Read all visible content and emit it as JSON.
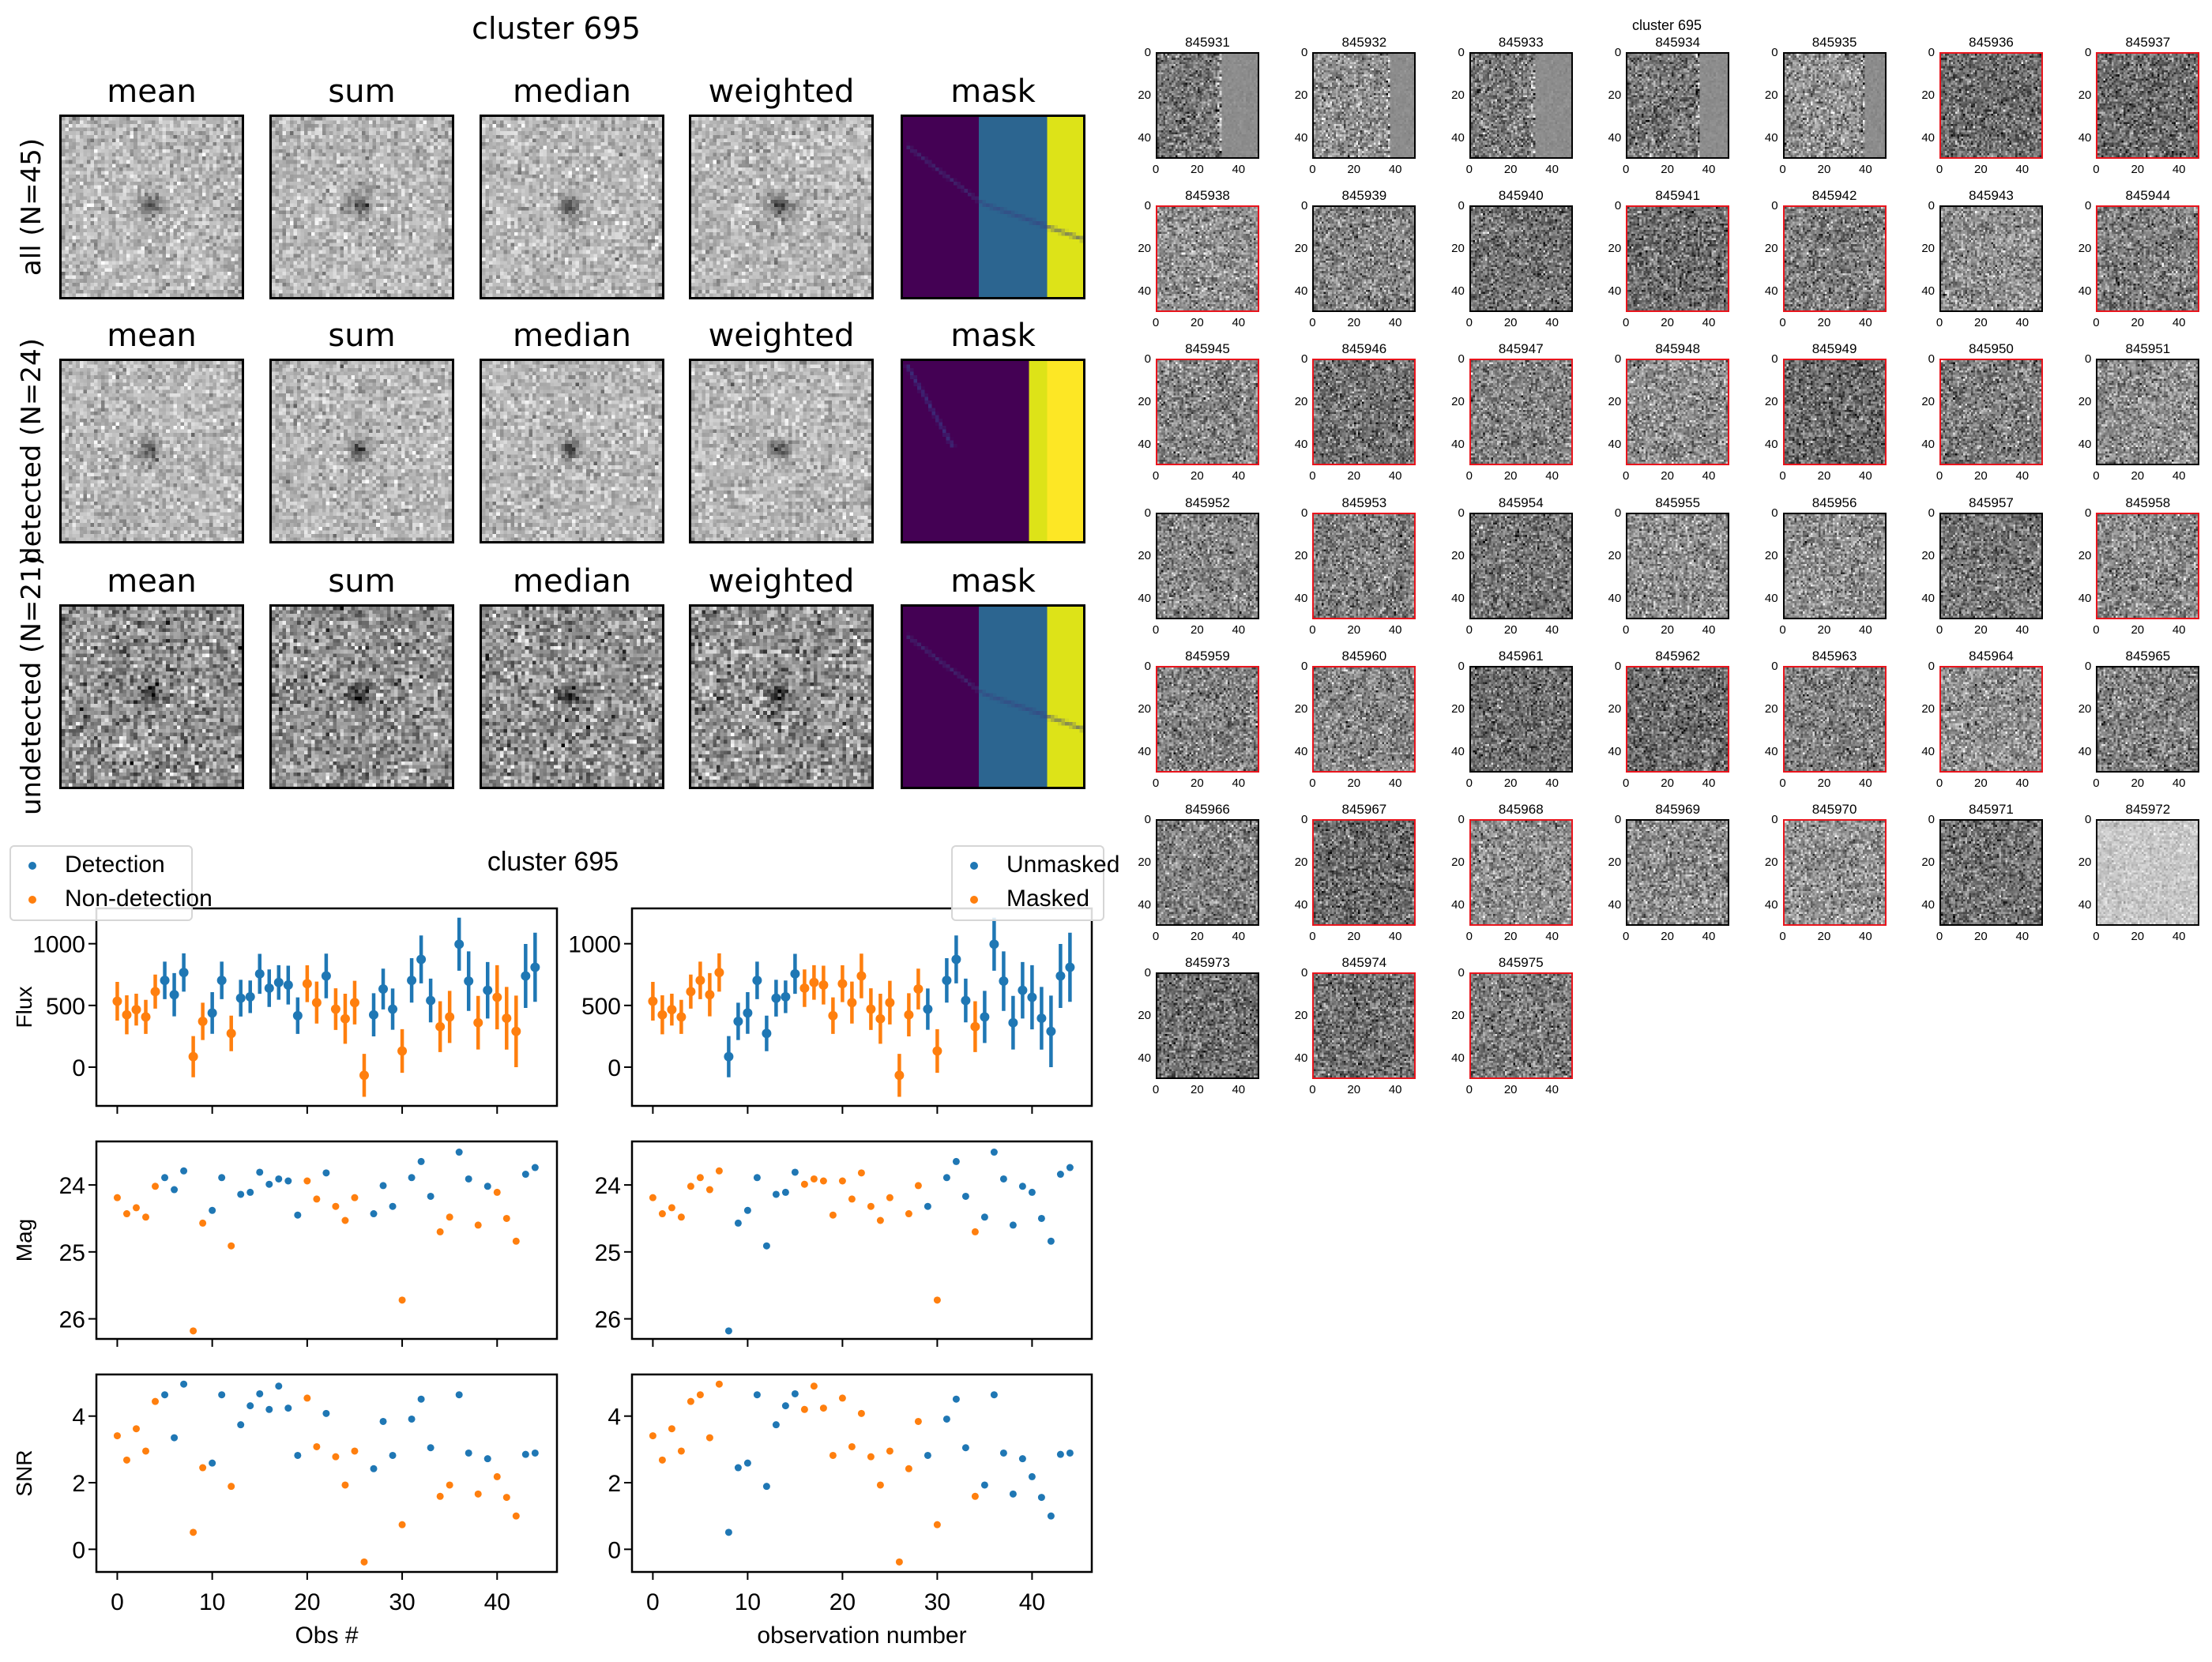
{
  "composite": {
    "title": "cluster 695",
    "column_titles": [
      "mean",
      "sum",
      "median",
      "weighted",
      "mask"
    ],
    "row_labels": [
      "all (N=45)",
      "detected (N=24)",
      "undetected (N=21)"
    ],
    "mask_colors": {
      "purple": "#440154",
      "blue": "#2c6590",
      "yellow": "#fde725",
      "yellow_dim": "#dde318"
    }
  },
  "thumbnails": {
    "title": "cluster 695",
    "tick_labels": [
      "0",
      "20",
      "40"
    ],
    "detected_border_color": "#e8141c",
    "items": [
      {
        "id": "845931",
        "detected": false
      },
      {
        "id": "845932",
        "detected": false
      },
      {
        "id": "845933",
        "detected": false
      },
      {
        "id": "845934",
        "detected": false
      },
      {
        "id": "845935",
        "detected": false
      },
      {
        "id": "845936",
        "detected": true
      },
      {
        "id": "845937",
        "detected": true
      },
      {
        "id": "845938",
        "detected": true
      },
      {
        "id": "845939",
        "detected": false
      },
      {
        "id": "845940",
        "detected": false
      },
      {
        "id": "845941",
        "detected": true
      },
      {
        "id": "845942",
        "detected": true
      },
      {
        "id": "845943",
        "detected": false
      },
      {
        "id": "845944",
        "detected": true
      },
      {
        "id": "845945",
        "detected": true
      },
      {
        "id": "845946",
        "detected": true
      },
      {
        "id": "845947",
        "detected": true
      },
      {
        "id": "845948",
        "detected": true
      },
      {
        "id": "845949",
        "detected": true
      },
      {
        "id": "845950",
        "detected": true
      },
      {
        "id": "845951",
        "detected": false
      },
      {
        "id": "845952",
        "detected": false
      },
      {
        "id": "845953",
        "detected": true
      },
      {
        "id": "845954",
        "detected": false
      },
      {
        "id": "845955",
        "detected": false
      },
      {
        "id": "845956",
        "detected": false
      },
      {
        "id": "845957",
        "detected": false
      },
      {
        "id": "845958",
        "detected": true
      },
      {
        "id": "845959",
        "detected": true
      },
      {
        "id": "845960",
        "detected": true
      },
      {
        "id": "845961",
        "detected": false
      },
      {
        "id": "845962",
        "detected": true
      },
      {
        "id": "845963",
        "detected": true
      },
      {
        "id": "845964",
        "detected": true
      },
      {
        "id": "845965",
        "detected": false
      },
      {
        "id": "845966",
        "detected": false
      },
      {
        "id": "845967",
        "detected": true
      },
      {
        "id": "845968",
        "detected": true
      },
      {
        "id": "845969",
        "detected": false
      },
      {
        "id": "845970",
        "detected": true
      },
      {
        "id": "845971",
        "detected": false
      },
      {
        "id": "845972",
        "detected": false
      },
      {
        "id": "845973",
        "detected": false
      },
      {
        "id": "845974",
        "detected": true
      },
      {
        "id": "845975",
        "detected": true
      }
    ]
  },
  "chart_data": {
    "type": "scatter",
    "title": "cluster 695",
    "colors": {
      "blue": "#1f77b4",
      "orange": "#ff7f0e"
    },
    "observations": {
      "x": [
        0,
        1,
        2,
        3,
        4,
        5,
        6,
        7,
        8,
        9,
        10,
        11,
        12,
        13,
        14,
        15,
        16,
        17,
        18,
        19,
        20,
        21,
        22,
        23,
        24,
        25,
        26,
        27,
        28,
        29,
        30,
        31,
        32,
        33,
        34,
        35,
        36,
        37,
        38,
        39,
        40,
        41,
        42,
        43,
        44
      ],
      "flux": [
        534,
        424,
        466,
        407,
        612,
        703,
        587,
        767,
        85,
        371,
        439,
        703,
        273,
        559,
        570,
        756,
        640,
        686,
        665,
        417,
        676,
        523,
        739,
        470,
        392,
        523,
        -66,
        424,
        633,
        470,
        131,
        703,
        873,
        540,
        328,
        407,
        996,
        697,
        360,
        623,
        566,
        396,
        290,
        739,
        809
      ],
      "flux_err": [
        157,
        158,
        129,
        138,
        138,
        152,
        175,
        155,
        167,
        151,
        169,
        152,
        144,
        149,
        132,
        162,
        152,
        140,
        157,
        148,
        149,
        170,
        181,
        169,
        203,
        177,
        174,
        175,
        165,
        167,
        177,
        180,
        194,
        177,
        206,
        211,
        215,
        241,
        217,
        229,
        260,
        254,
        290,
        259,
        280
      ],
      "mag": [
        24.19,
        24.43,
        24.34,
        24.48,
        24.02,
        23.89,
        24.07,
        23.79,
        26.18,
        24.57,
        24.38,
        23.89,
        24.91,
        24.14,
        24.11,
        23.81,
        23.99,
        23.91,
        23.94,
        24.45,
        23.94,
        24.21,
        23.82,
        24.32,
        24.53,
        24.19,
        null,
        24.43,
        24.01,
        24.32,
        25.72,
        23.89,
        23.65,
        24.17,
        24.7,
        24.48,
        23.51,
        23.91,
        24.6,
        24.02,
        24.11,
        24.5,
        24.84,
        23.84,
        23.74
      ],
      "snr": [
        3.41,
        2.68,
        3.62,
        2.95,
        4.44,
        4.64,
        3.35,
        4.96,
        0.51,
        2.45,
        2.59,
        4.64,
        1.89,
        3.74,
        4.31,
        4.67,
        4.2,
        4.9,
        4.24,
        2.82,
        4.54,
        3.08,
        4.08,
        2.78,
        1.93,
        2.95,
        -0.38,
        2.42,
        3.84,
        2.82,
        0.74,
        3.91,
        4.51,
        3.05,
        1.59,
        1.93,
        4.64,
        2.89,
        1.66,
        2.72,
        2.18,
        1.56,
        1.0,
        2.85,
        2.89
      ],
      "detected": [
        false,
        false,
        false,
        false,
        false,
        true,
        true,
        true,
        false,
        false,
        true,
        true,
        false,
        true,
        true,
        true,
        true,
        true,
        true,
        true,
        false,
        false,
        true,
        false,
        false,
        false,
        false,
        true,
        true,
        true,
        false,
        true,
        true,
        true,
        false,
        false,
        true,
        true,
        false,
        true,
        false,
        false,
        false,
        true,
        true
      ],
      "masked": [
        true,
        true,
        true,
        true,
        true,
        true,
        true,
        true,
        false,
        false,
        false,
        false,
        false,
        false,
        false,
        false,
        true,
        true,
        true,
        true,
        true,
        true,
        true,
        true,
        true,
        true,
        true,
        true,
        true,
        false,
        true,
        false,
        false,
        false,
        true,
        false,
        false,
        false,
        false,
        false,
        false,
        false,
        false,
        false,
        false
      ]
    },
    "xlim": [
      -2.2,
      46.3
    ],
    "xticks": [
      "0",
      "10",
      "20",
      "30",
      "40"
    ],
    "columns": [
      {
        "color_by": "detected",
        "xlabel": "Obs #",
        "legend": {
          "placement": "top-left",
          "entries": [
            {
              "label": "Detection",
              "color": "blue"
            },
            {
              "label": "Non-detection",
              "color": "orange"
            }
          ]
        }
      },
      {
        "color_by": "masked",
        "xlabel": "observation number",
        "legend": {
          "placement": "top-right",
          "entries": [
            {
              "label": "Unmasked",
              "color": "blue"
            },
            {
              "label": "Masked",
              "color": "orange"
            }
          ]
        }
      }
    ],
    "rows": [
      {
        "field": "flux",
        "ylabel": "Flux",
        "ylim": [
          -314,
          1286
        ],
        "yticks": [
          "0",
          "500",
          "1000"
        ],
        "errorbars": true,
        "inverted": false
      },
      {
        "field": "mag",
        "ylabel": "Mag",
        "ylim": [
          26.3,
          23.35
        ],
        "yticks": [
          "24",
          "25",
          "26"
        ],
        "errorbars": false,
        "inverted": true
      },
      {
        "field": "snr",
        "ylabel": "SNR",
        "ylim": [
          -0.68,
          5.25
        ],
        "yticks": [
          "0",
          "2",
          "4"
        ],
        "errorbars": false,
        "inverted": false
      }
    ],
    "grid": false
  }
}
